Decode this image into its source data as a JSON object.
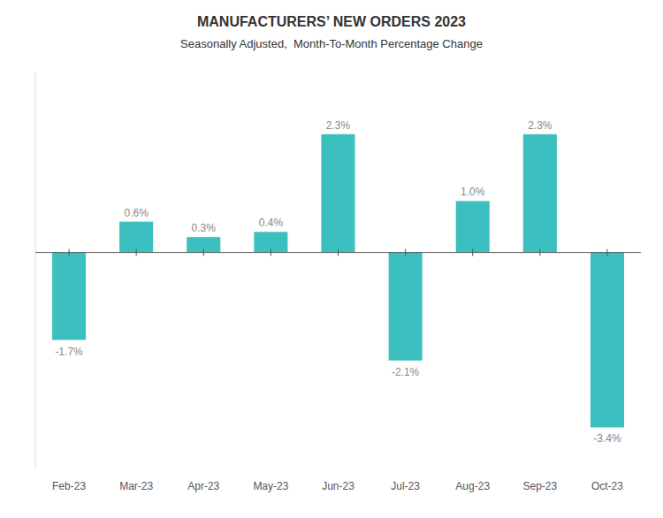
{
  "chart_data": {
    "type": "bar",
    "title": "MANUFACTURERS’ NEW ORDERS 2023",
    "subtitle": "Seasonally Adjusted,  Month-To-Month Percentage Change",
    "categories": [
      "Feb-23",
      "Mar-23",
      "Apr-23",
      "May-23",
      "Jun-23",
      "Jul-23",
      "Aug-23",
      "Sep-23",
      "Oct-23"
    ],
    "values": [
      -1.7,
      0.6,
      0.3,
      0.4,
      2.3,
      -2.1,
      1.0,
      2.3,
      -3.4
    ],
    "value_labels": [
      "-1.7%",
      "0.6%",
      "0.3%",
      "0.4%",
      "2.3%",
      "-2.1%",
      "1.0%",
      "2.3%",
      "-3.4%"
    ],
    "data_labels": true,
    "color": "#3CBFBF",
    "ylim": [
      -4.2,
      3.5
    ],
    "grid": false,
    "tick_labels": "x"
  }
}
